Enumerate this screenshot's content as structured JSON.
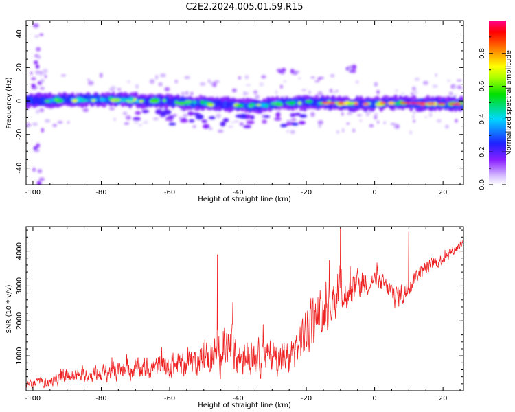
{
  "title": "C2E2.2024.005.01.59.R15",
  "chart_data": [
    {
      "type": "heatmap",
      "xlabel": "Height of straight line (km)",
      "ylabel": "Frequency (Hz)",
      "xlim": [
        -102,
        26
      ],
      "ylim": [
        -50,
        48
      ],
      "xticks": [
        -100,
        -80,
        -60,
        -40,
        -20,
        0,
        20
      ],
      "yticks": [
        -40,
        -20,
        0,
        20,
        40
      ],
      "colorbar": {
        "label": "Normalized spectral amplitude",
        "range": [
          0,
          1
        ],
        "ticks": [
          "0.0",
          "0.2",
          "0.4",
          "0.6",
          "0.8"
        ],
        "colormap": "rainbow (white-violet-blue-cyan-green-yellow-red-magenta)"
      },
      "ridge": {
        "description": "main spectral band near 0 Hz",
        "frequency_path": [
          [
            -102,
            0
          ],
          [
            -80,
            1
          ],
          [
            -65,
            0
          ],
          [
            -55,
            -1
          ],
          [
            -45,
            -2
          ],
          [
            -35,
            -3
          ],
          [
            -25,
            -1
          ],
          [
            -15,
            -1
          ],
          [
            -5,
            -2
          ],
          [
            5,
            -1
          ],
          [
            25,
            -2
          ]
        ]
      },
      "secondary_features": [
        {
          "x_range": [
            -28,
            -22
          ],
          "frequency": 18
        },
        {
          "x_range": [
            -8,
            -6
          ],
          "frequency": 19
        },
        {
          "x_range": [
            -100,
            -97
          ],
          "frequency_range": [
            -50,
            48
          ]
        },
        {
          "x_range": [
            -65,
            -55
          ],
          "frequency": -10
        }
      ]
    },
    {
      "type": "line",
      "xlabel": "Height of straight line (km)",
      "ylabel": "SNR (10 * v/v)",
      "xlim": [
        -102,
        26
      ],
      "ylim": [
        0,
        4700
      ],
      "xticks": [
        -100,
        -80,
        -60,
        -40,
        -20,
        0,
        20
      ],
      "yticks": [
        1000,
        2000,
        3000,
        4000
      ],
      "series": [
        {
          "color": "#ee2222",
          "envelope": {
            "x": [
              -102,
              -95,
              -90,
              -85,
              -80,
              -75,
              -70,
              -65,
              -60,
              -55,
              -50,
              -45,
              -42,
              -40,
              -35,
              -30,
              -25,
              -20,
              -15,
              -12,
              -10,
              -8,
              -5,
              -2,
              0,
              3,
              6,
              9,
              12,
              15,
              20,
              26
            ],
            "center": [
              200,
              250,
              400,
              450,
              500,
              550,
              600,
              650,
              700,
              800,
              900,
              1100,
              1200,
              950,
              950,
              1000,
              900,
              1700,
              2300,
              2600,
              3000,
              2600,
              3000,
              3100,
              3200,
              3000,
              2700,
              2800,
              3300,
              3500,
              3800,
              4250
            ],
            "spread": [
              150,
              200,
              300,
              300,
              350,
              400,
              400,
              450,
              500,
              500,
              600,
              900,
              1100,
              800,
              700,
              700,
              700,
              1000,
              900,
              900,
              900,
              700,
              600,
              500,
              400,
              400,
              500,
              500,
              300,
              300,
              250,
              200
            ]
          },
          "peaks": [
            {
              "x": -46,
              "y": 3900
            },
            {
              "x": -10,
              "y": 4700
            },
            {
              "x": 10,
              "y": 4550
            }
          ]
        }
      ]
    }
  ]
}
